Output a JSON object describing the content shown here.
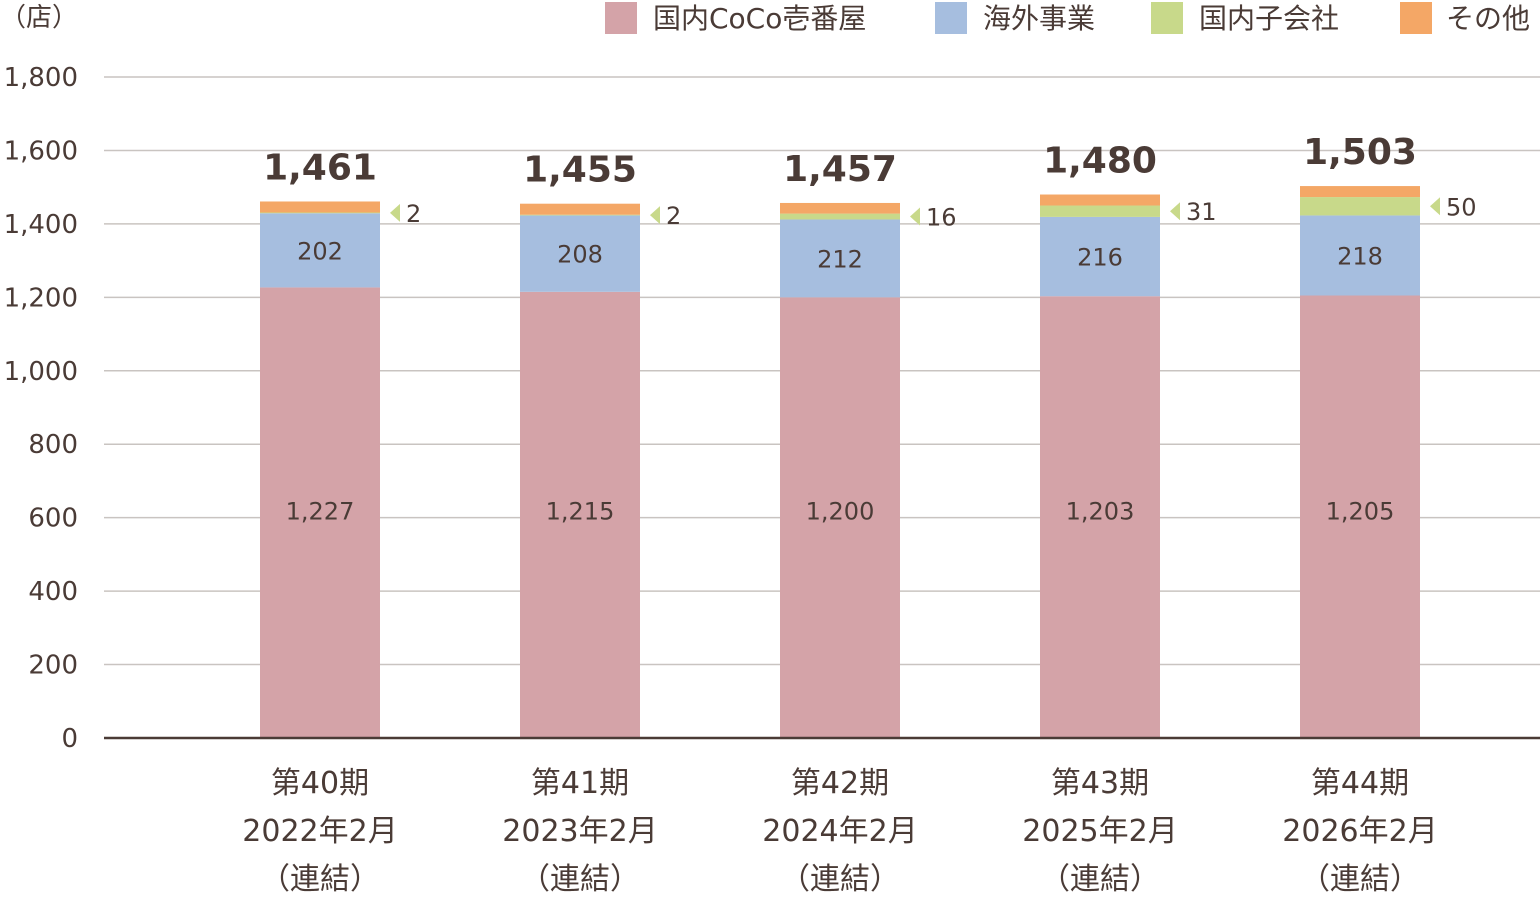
{
  "chart_data": {
    "type": "bar",
    "stacked": true,
    "unit_label": "（店）",
    "categories": [
      [
        "第40期",
        "2022年2月",
        "（連結）"
      ],
      [
        "第41期",
        "2023年2月",
        "（連結）"
      ],
      [
        "第42期",
        "2024年2月",
        "（連結）"
      ],
      [
        "第43期",
        "2025年2月",
        "（連結）"
      ],
      [
        "第44期",
        "2026年2月",
        "（連結）"
      ]
    ],
    "series": [
      {
        "name": "国内CoCo壱番屋",
        "color": "#d4a3a8",
        "values": [
          1227,
          1215,
          1200,
          1203,
          1205
        ]
      },
      {
        "name": "海外事業",
        "color": "#a6bedf",
        "values": [
          202,
          208,
          212,
          216,
          218
        ]
      },
      {
        "name": "国内子会社",
        "color": "#c8d98a",
        "values": [
          2,
          2,
          16,
          31,
          50
        ]
      },
      {
        "name": "その他",
        "color": "#f4a766",
        "values": [
          30,
          30,
          29,
          30,
          30
        ]
      }
    ],
    "totals": [
      1461,
      1455,
      1457,
      1480,
      1503
    ],
    "ylim": [
      0,
      1800
    ],
    "yticks": [
      0,
      200,
      400,
      600,
      800,
      1000,
      1200,
      1400,
      1600,
      1800
    ],
    "grid": true,
    "legend": "top-right"
  }
}
